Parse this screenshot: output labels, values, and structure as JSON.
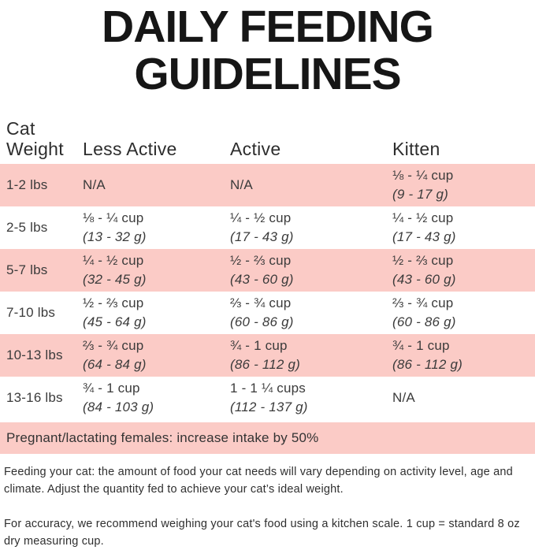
{
  "colors": {
    "row_pink": "#FBCBC6",
    "title_black": "#161616",
    "text_dark": "#3B3B3B"
  },
  "title": {
    "line1": "DAILY FEEDING",
    "line2": "GUIDELINES"
  },
  "table": {
    "headers": [
      "Cat Weight",
      "Less Active",
      "Active",
      "Kitten"
    ],
    "rows": [
      {
        "weight": "1-2 lbs",
        "cells": [
          {
            "cups": "N/A",
            "grams": ""
          },
          {
            "cups": "N/A",
            "grams": ""
          },
          {
            "cups": "⅛ - ¼ cup",
            "grams": "(9 - 17 g)"
          }
        ]
      },
      {
        "weight": "2-5 lbs",
        "cells": [
          {
            "cups": "⅛ - ¼ cup",
            "grams": "(13 - 32 g)"
          },
          {
            "cups": "¼ - ½ cup",
            "grams": "(17 - 43 g)"
          },
          {
            "cups": "¼ - ½ cup",
            "grams": "(17 - 43 g)"
          }
        ]
      },
      {
        "weight": "5-7 lbs",
        "cells": [
          {
            "cups": "¼ - ½ cup",
            "grams": "(32 - 45 g)"
          },
          {
            "cups": "½ - ⅔ cup",
            "grams": "(43 - 60 g)"
          },
          {
            "cups": "½ - ⅔ cup",
            "grams": "(43 - 60 g)"
          }
        ]
      },
      {
        "weight": "7-10 lbs",
        "cells": [
          {
            "cups": "½ - ⅔ cup",
            "grams": "(45 - 64 g)"
          },
          {
            "cups": "⅔ - ¾ cup",
            "grams": "(60 - 86 g)"
          },
          {
            "cups": "⅔ - ¾ cup",
            "grams": "(60 - 86 g)"
          }
        ]
      },
      {
        "weight": "10-13 lbs",
        "cells": [
          {
            "cups": "⅔ - ¾ cup",
            "grams": "(64 - 84 g)"
          },
          {
            "cups": "¾ - 1 cup",
            "grams": "(86 - 112 g)"
          },
          {
            "cups": "¾ - 1 cup",
            "grams": "(86 - 112 g)"
          }
        ]
      },
      {
        "weight": "13-16 lbs",
        "cells": [
          {
            "cups": "¾ - 1 cup",
            "grams": "(84 - 103 g)"
          },
          {
            "cups": "1 - 1 ¼ cups",
            "grams": "(112 - 137 g)"
          },
          {
            "cups": "N/A",
            "grams": ""
          }
        ]
      }
    ]
  },
  "banner": {
    "text": "Pregnant/lactating females: increase intake by 50%"
  },
  "notes": [
    "Feeding your cat: the amount of food your cat needs will vary depending on activity level, age and climate. Adjust the quantity fed to achieve your cat’s ideal weight.",
    "For accuracy, we recommend weighing your cat's food using a kitchen scale. 1 cup = standard 8 oz dry measuring cup."
  ]
}
